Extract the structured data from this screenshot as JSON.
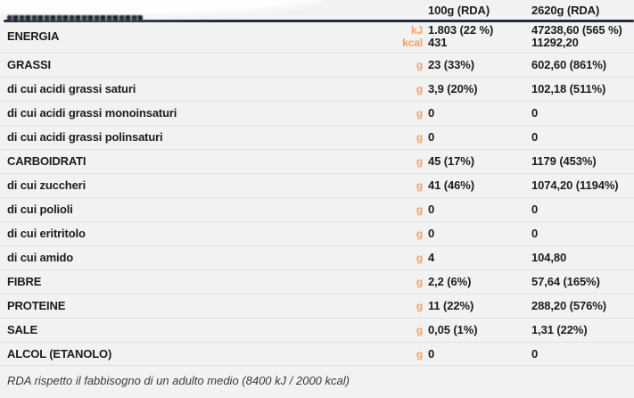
{
  "colors": {
    "background": "#f2f2f3",
    "text": "#1c1c1e",
    "accent_orange": "#f5a163",
    "header_rule": "#242e3b",
    "divider": "#e1e1e4"
  },
  "header": {
    "col_per_100g": "100g (RDA)",
    "col_per_2620g": "2620g (RDA)",
    "redacted_title": ""
  },
  "table": {
    "rows": [
      {
        "label": "ENERGIA",
        "emphasis": "main",
        "units": [
          "kJ",
          "kcal"
        ],
        "per100": [
          "1.803 (22 %)",
          "431"
        ],
        "per2620": [
          "47238,60 (565 %)",
          "11292,20"
        ]
      },
      {
        "label": "GRASSI",
        "emphasis": "main",
        "units": [
          "g"
        ],
        "per100": [
          "23 (33%)"
        ],
        "per2620": [
          "602,60 (861%)"
        ]
      },
      {
        "label": "di cui acidi grassi saturi",
        "emphasis": "sub",
        "units": [
          "g"
        ],
        "per100": [
          "3,9 (20%)"
        ],
        "per2620": [
          "102,18 (511%)"
        ]
      },
      {
        "label": "di cui acidi grassi monoinsaturi",
        "emphasis": "sub",
        "units": [
          "g"
        ],
        "per100": [
          "0"
        ],
        "per2620": [
          "0"
        ]
      },
      {
        "label": "di cui acidi grassi polinsaturi",
        "emphasis": "sub",
        "units": [
          "g"
        ],
        "per100": [
          "0"
        ],
        "per2620": [
          "0"
        ]
      },
      {
        "label": "CARBOIDRATI",
        "emphasis": "main",
        "units": [
          "g"
        ],
        "per100": [
          "45 (17%)"
        ],
        "per2620": [
          "1179 (453%)"
        ]
      },
      {
        "label": "di cui zuccheri",
        "emphasis": "sub",
        "units": [
          "g"
        ],
        "per100": [
          "41 (46%)"
        ],
        "per2620": [
          "1074,20 (1194%)"
        ]
      },
      {
        "label": "di cui polioli",
        "emphasis": "sub",
        "units": [
          "g"
        ],
        "per100": [
          "0"
        ],
        "per2620": [
          "0"
        ]
      },
      {
        "label": "di cui eritritolo",
        "emphasis": "sub",
        "units": [
          "g"
        ],
        "per100": [
          "0"
        ],
        "per2620": [
          "0"
        ]
      },
      {
        "label": "di cui amido",
        "emphasis": "sub",
        "units": [
          "g"
        ],
        "per100": [
          "4"
        ],
        "per2620": [
          "104,80"
        ]
      },
      {
        "label": "FIBRE",
        "emphasis": "main",
        "units": [
          "g"
        ],
        "per100": [
          "2,2 (6%)"
        ],
        "per2620": [
          "57,64 (165%)"
        ]
      },
      {
        "label": "PROTEINE",
        "emphasis": "main",
        "units": [
          "g"
        ],
        "per100": [
          "11 (22%)"
        ],
        "per2620": [
          "288,20 (576%)"
        ]
      },
      {
        "label": "SALE",
        "emphasis": "main",
        "units": [
          "g"
        ],
        "per100": [
          "0,05 (1%)"
        ],
        "per2620": [
          "1,31 (22%)"
        ]
      },
      {
        "label": "ALCOL (ETANOLO)",
        "emphasis": "main",
        "units": [
          "g"
        ],
        "per100": [
          "0"
        ],
        "per2620": [
          "0"
        ]
      }
    ]
  },
  "footer": {
    "note": "RDA rispetto il fabbisogno di un adulto medio (8400 kJ / 2000 kcal)"
  }
}
